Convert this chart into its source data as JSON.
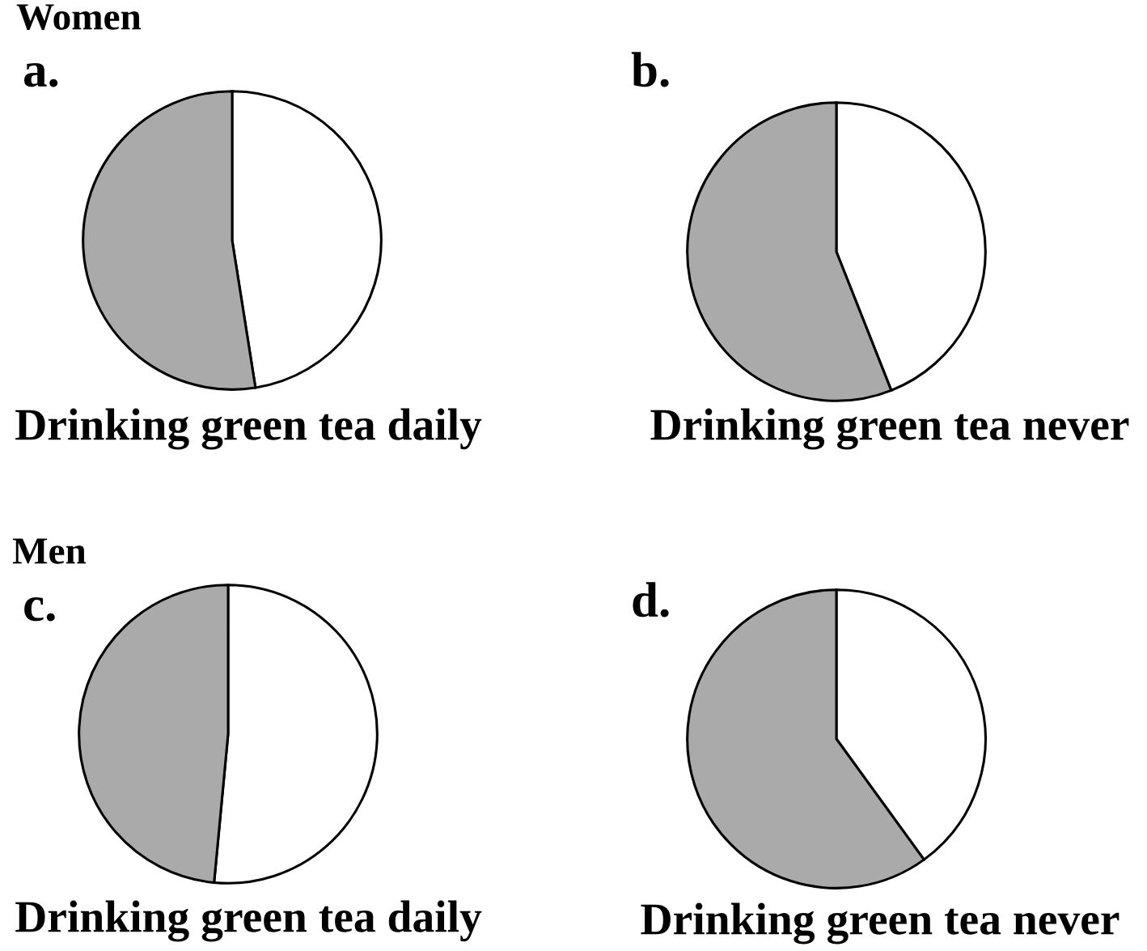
{
  "chart_data": [
    {
      "type": "pie",
      "title": "a.",
      "annotations": [
        "Women",
        "Drinking green tea daily"
      ],
      "categories": [
        null,
        null
      ],
      "values": [
        47.5,
        52.5
      ],
      "colors": [
        "#ffffff",
        "#aaaaaa"
      ]
    },
    {
      "type": "pie",
      "title": "b.",
      "annotations": [
        "Drinking green tea never"
      ],
      "categories": [
        null,
        null
      ],
      "values": [
        44,
        56
      ],
      "colors": [
        "#ffffff",
        "#aaaaaa"
      ]
    },
    {
      "type": "pie",
      "title": "c.",
      "annotations": [
        "Men",
        "Drinking green tea daily"
      ],
      "categories": [
        null,
        null
      ],
      "values": [
        51.5,
        48.5
      ],
      "colors": [
        "#ffffff",
        "#aaaaaa"
      ]
    },
    {
      "type": "pie",
      "title": "d.",
      "annotations": [
        "Drinking green tea never"
      ],
      "categories": [
        null,
        null
      ],
      "values": [
        40,
        60
      ],
      "colors": [
        "#ffffff",
        "#aaaaaa"
      ]
    }
  ]
}
